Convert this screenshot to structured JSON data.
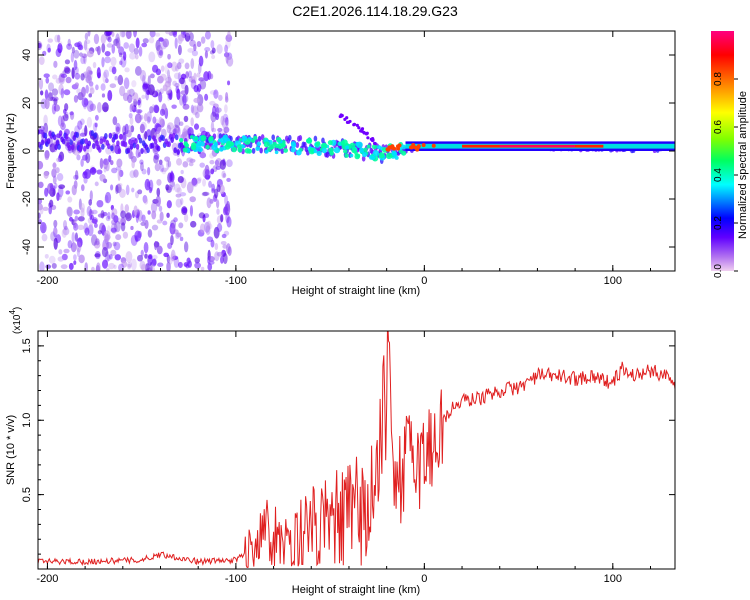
{
  "title": "C2E1.2026.114.18.29.G23",
  "chart_data": [
    {
      "type": "heatmap",
      "title": "C2E1.2026.114.18.29.G23",
      "xlabel": "Height of straight line (km)",
      "ylabel": "Frequency (Hz)",
      "xlim": [
        -205,
        133
      ],
      "ylim": [
        -50,
        50
      ],
      "xticks": [
        -200,
        -100,
        0,
        100
      ],
      "yticks": [
        -40,
        -20,
        0,
        20,
        40
      ],
      "colorbar": {
        "label": "Normalized spectral amplitude",
        "range": [
          0,
          1
        ],
        "ticks": [
          0.0,
          0.2,
          0.4,
          0.6,
          0.8
        ],
        "colors": [
          "#f0d0f0",
          "#b070f0",
          "#6000ff",
          "#0000ff",
          "#00ffff",
          "#00ff60",
          "#80ff00",
          "#ffff00",
          "#ff8000",
          "#ff0000",
          "#ff0080"
        ]
      },
      "features": [
        {
          "name": "signal trace",
          "x": [
            -205,
            -150,
            -100,
            -60,
            -20,
            0,
            50,
            100,
            133
          ],
          "freq_hz": [
            5,
            3,
            3,
            2,
            -1,
            2,
            2,
            1,
            1
          ]
        },
        {
          "name": "side branch",
          "x": [
            -45,
            -35,
            -25
          ],
          "freq_hz": [
            15,
            10,
            3
          ]
        },
        {
          "name": "diffuse scatter",
          "x_range": [
            -205,
            -103
          ],
          "freq_range_hz": [
            -50,
            50
          ]
        }
      ]
    },
    {
      "type": "line",
      "xlabel": "Height of straight line (km)",
      "ylabel": "SNR (10 * v/v)",
      "y_multiplier": "(x10",
      "y_multiplier_exp": "4",
      "y_multiplier_close": ")",
      "xlim": [
        -205,
        133
      ],
      "ylim": [
        0,
        1.6
      ],
      "xticks": [
        -200,
        -100,
        0,
        100
      ],
      "yticks": [
        0.5,
        1.0,
        1.5
      ],
      "series": [
        {
          "name": "SNR",
          "color": "#e02020",
          "x": [
            -205,
            -180,
            -150,
            -140,
            -120,
            -100,
            -90,
            -85,
            -80,
            -70,
            -60,
            -50,
            -40,
            -30,
            -25,
            -22,
            -20,
            -18,
            -15,
            -12,
            -10,
            -8,
            -5,
            -2,
            0,
            5,
            10,
            15,
            20,
            30,
            40,
            50,
            60,
            70,
            80,
            90,
            95,
            100,
            105,
            110,
            120,
            130,
            133
          ],
          "y": [
            0.05,
            0.05,
            0.06,
            0.1,
            0.05,
            0.06,
            0.15,
            0.35,
            0.2,
            0.2,
            0.25,
            0.28,
            0.35,
            0.4,
            0.6,
            0.9,
            1.3,
            1.0,
            0.7,
            0.6,
            0.7,
            0.75,
            0.8,
            0.7,
            0.75,
            0.85,
            1.0,
            1.08,
            1.13,
            1.15,
            1.2,
            1.22,
            1.3,
            1.3,
            1.28,
            1.3,
            1.27,
            1.25,
            1.35,
            1.3,
            1.33,
            1.3,
            1.25
          ]
        }
      ]
    }
  ]
}
